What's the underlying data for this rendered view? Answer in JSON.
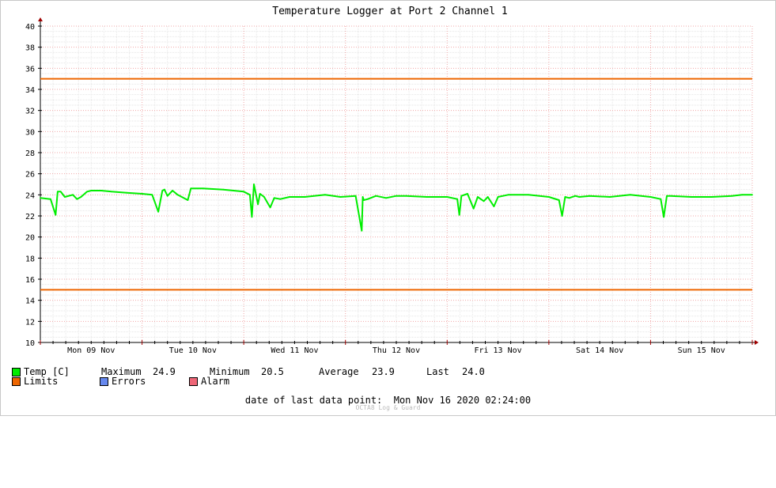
{
  "chart_data": {
    "type": "line",
    "title": "Temperature Logger at Port 2 Channel 1",
    "ylim": [
      10,
      40
    ],
    "yticks": [
      10,
      12,
      14,
      16,
      18,
      20,
      22,
      24,
      26,
      28,
      30,
      32,
      34,
      36,
      38,
      40
    ],
    "x_tick_labels": [
      "Mon 09 Nov",
      "Tue 10 Nov",
      "Wed 11 Nov",
      "Thu 12 Nov",
      "Fri 13 Nov",
      "Sat 14 Nov",
      "Sun 15 Nov"
    ],
    "grid": true,
    "series": [
      {
        "name": "Temp [C]",
        "color": "#00ee00",
        "x_days": [
          0,
          0.1,
          0.15,
          0.17,
          0.2,
          0.24,
          0.32,
          0.36,
          0.4,
          0.46,
          0.5,
          0.6,
          0.7,
          0.85,
          1.0,
          1.1,
          1.16,
          1.2,
          1.22,
          1.25,
          1.3,
          1.35,
          1.45,
          1.48,
          1.6,
          1.8,
          2.0,
          2.06,
          2.08,
          2.1,
          2.14,
          2.16,
          2.2,
          2.26,
          2.3,
          2.36,
          2.45,
          2.6,
          2.8,
          2.95,
          3.1,
          3.16,
          3.17,
          3.18,
          3.22,
          3.3,
          3.4,
          3.5,
          3.6,
          3.8,
          4.0,
          4.1,
          4.12,
          4.14,
          4.2,
          4.26,
          4.3,
          4.36,
          4.4,
          4.46,
          4.5,
          4.6,
          4.8,
          5.0,
          5.1,
          5.13,
          5.16,
          5.2,
          5.26,
          5.3,
          5.4,
          5.6,
          5.8,
          6.0,
          6.1,
          6.13,
          6.16,
          6.2,
          6.4,
          6.6,
          6.8,
          6.9,
          7.0
        ],
        "values": [
          23.7,
          23.6,
          22.1,
          24.3,
          24.3,
          23.8,
          24.0,
          23.6,
          23.8,
          24.3,
          24.4,
          24.4,
          24.3,
          24.2,
          24.1,
          24.0,
          22.4,
          24.4,
          24.5,
          23.9,
          24.4,
          24.0,
          23.5,
          24.6,
          24.6,
          24.5,
          24.3,
          24.0,
          21.9,
          25.0,
          23.1,
          24.1,
          23.8,
          22.8,
          23.7,
          23.6,
          23.8,
          23.8,
          24.0,
          23.8,
          23.9,
          20.6,
          23.8,
          23.5,
          23.6,
          23.9,
          23.7,
          23.9,
          23.9,
          23.8,
          23.8,
          23.6,
          22.1,
          23.9,
          24.1,
          22.7,
          23.8,
          23.4,
          23.8,
          22.9,
          23.8,
          24.0,
          24.0,
          23.8,
          23.5,
          22.0,
          23.8,
          23.7,
          23.9,
          23.8,
          23.9,
          23.8,
          24.0,
          23.8,
          23.6,
          21.9,
          23.9,
          23.9,
          23.8,
          23.8,
          23.9,
          24.0,
          24.0
        ]
      },
      {
        "name": "Limits",
        "color": "#ee6600",
        "values": [
          15,
          35
        ]
      }
    ]
  },
  "legend": {
    "temp": {
      "label": "Temp [C]",
      "color": "#00ee00"
    },
    "maximum_label": "Maximum",
    "maximum_value": "24.9",
    "minimum_label": "Minimum",
    "minimum_value": "20.5",
    "average_label": "Average",
    "average_value": "23.9",
    "last_label": "Last",
    "last_value": "24.0",
    "limits": {
      "label": "Limits",
      "color": "#ee6600"
    },
    "errors": {
      "label": "Errors",
      "color": "#6688ee"
    },
    "alarm": {
      "label": "Alarm",
      "color": "#ee6677"
    }
  },
  "footer": {
    "last_data_label": "date of last data point:",
    "last_data_value": "Mon Nov 16 2020 02:24:00",
    "credit": "OCTA8 Log & Guard"
  }
}
